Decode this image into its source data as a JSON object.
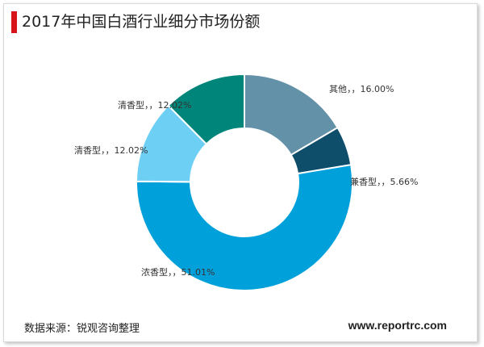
{
  "title": "2017年中国白酒行业细分市场份额",
  "source": "数据来源：锐观咨询整理",
  "site": "www.reportrc.com",
  "chart_data": {
    "type": "pie",
    "hole": true,
    "slices": [
      {
        "label": "其他，，16.00%",
        "value": 16.0,
        "color": "#6391a8"
      },
      {
        "label": "兼香型，，5.66%",
        "value": 5.66,
        "color": "#0e4e6b"
      },
      {
        "label": "浓香型，，51.01%",
        "value": 51.01,
        "color": "#00a0db"
      },
      {
        "label": "清香型，，12.02%",
        "value": 12.02,
        "color": "#6ecff5"
      },
      {
        "label": "清香型，，12.02%",
        "value": 12.02,
        "color": "#00857a"
      }
    ]
  }
}
